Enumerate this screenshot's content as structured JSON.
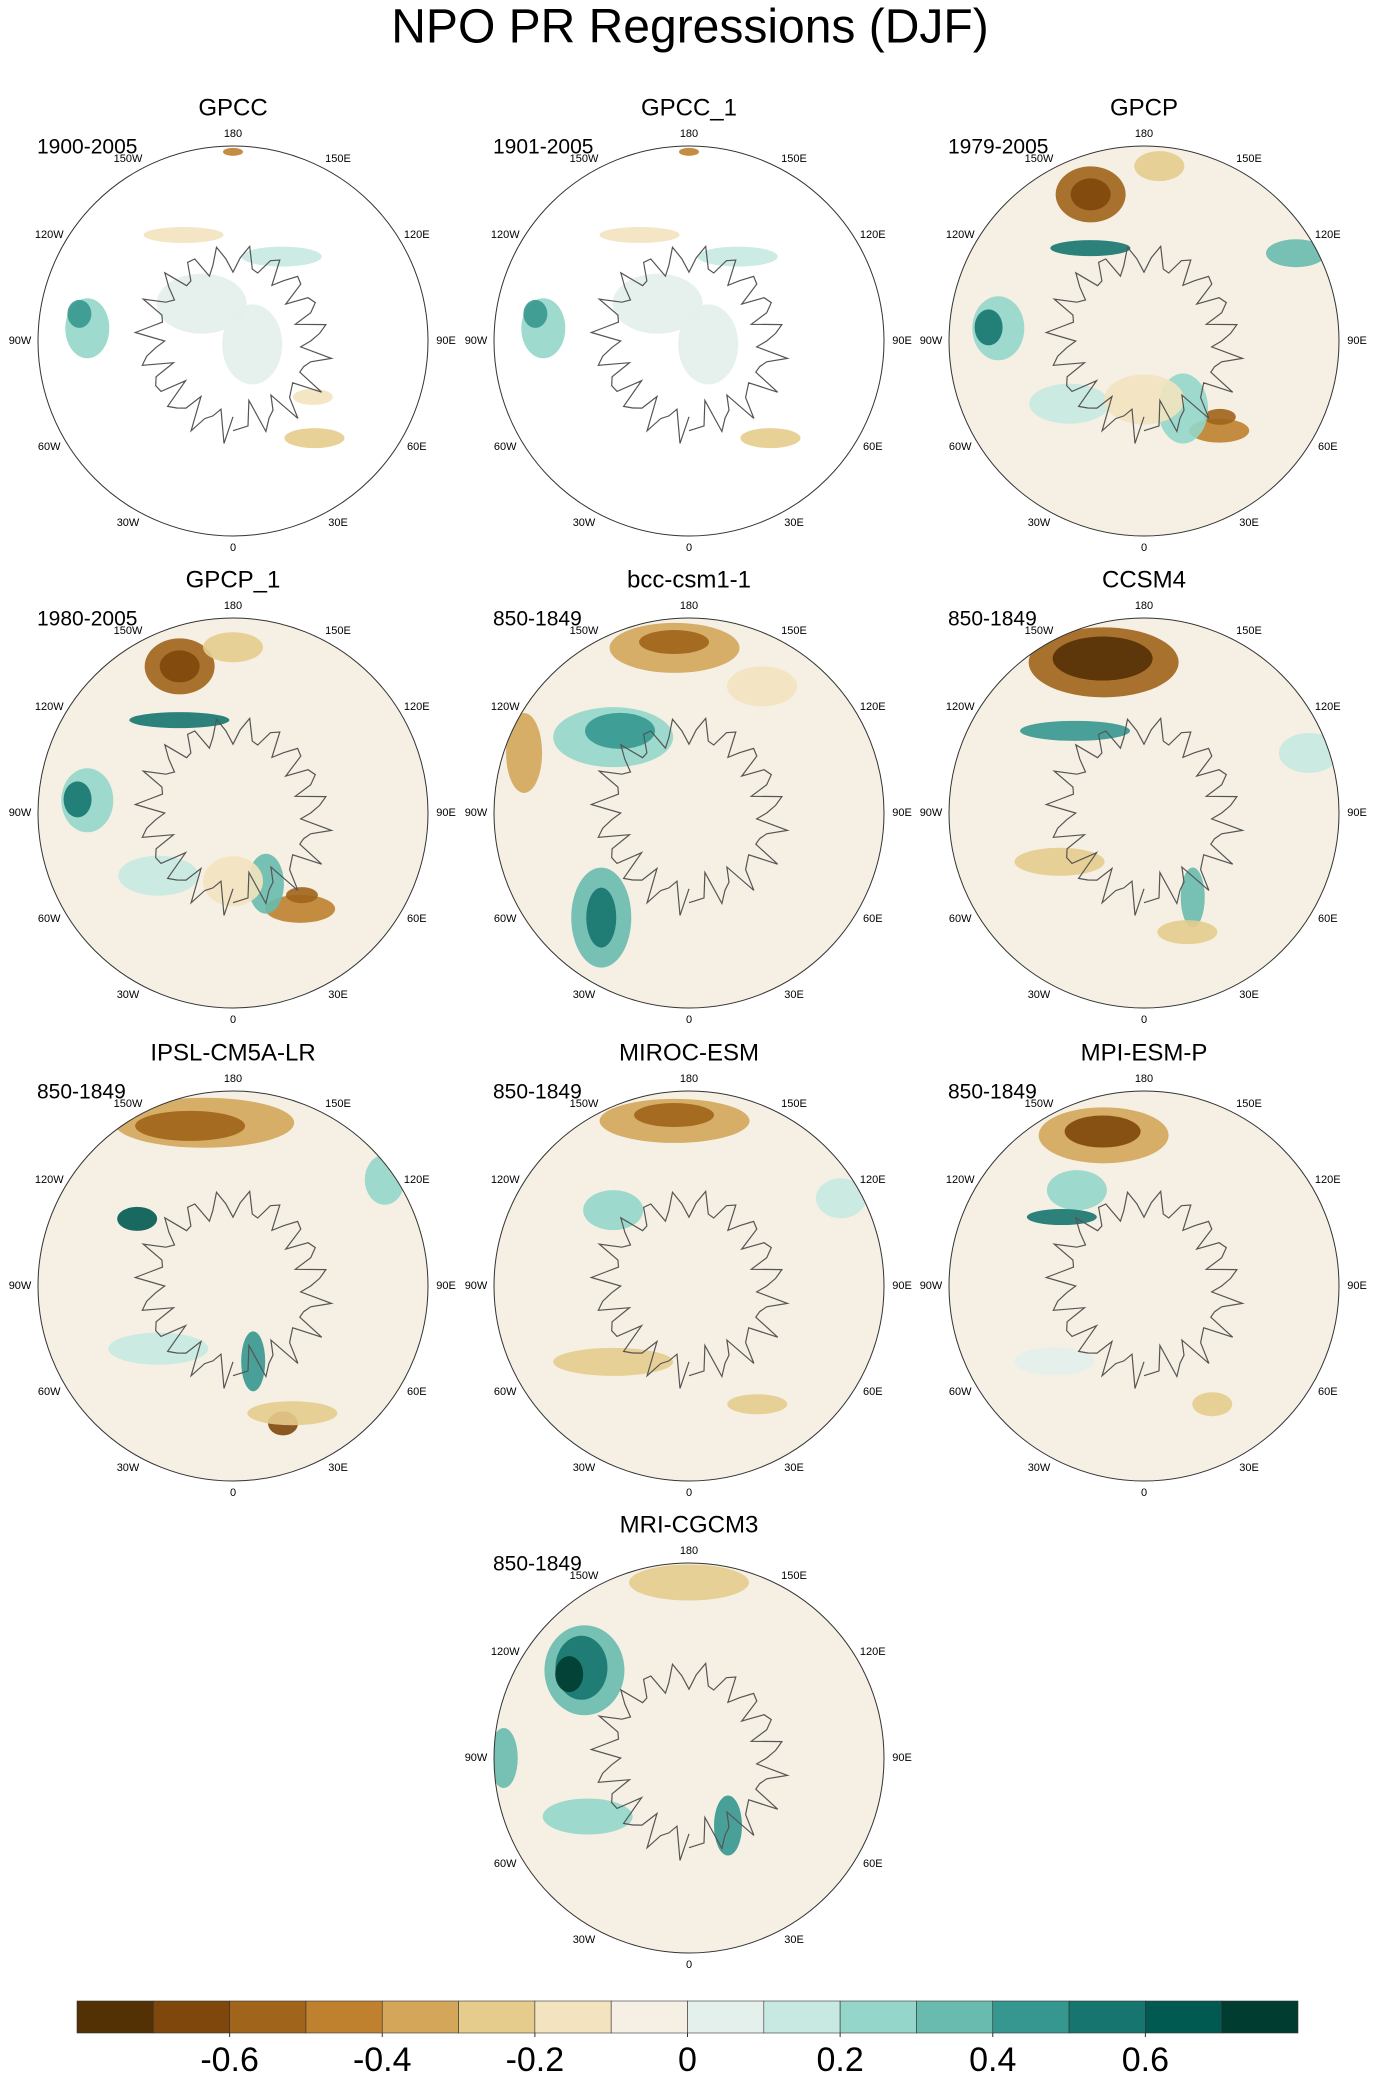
{
  "title": "NPO PR Regressions (DJF)",
  "lon_labels": [
    "0",
    "30E",
    "60E",
    "90E",
    "120E",
    "150E",
    "180",
    "150W",
    "120W",
    "90W",
    "60W",
    "30W"
  ],
  "panels": [
    {
      "title": "GPCC",
      "period": "1900-2005"
    },
    {
      "title": "GPCC_1",
      "period": "1901-2005"
    },
    {
      "title": "GPCP",
      "period": "1979-2005"
    },
    {
      "title": "GPCP_1",
      "period": "1980-2005"
    },
    {
      "title": "bcc-csm1-1",
      "period": "850-1849"
    },
    {
      "title": "CCSM4",
      "period": "850-1849"
    },
    {
      "title": "IPSL-CM5A-LR",
      "period": "850-1849"
    },
    {
      "title": "MIROC-ESM",
      "period": "850-1849"
    },
    {
      "title": "MPI-ESM-P",
      "period": "850-1849"
    },
    {
      "title": "MRI-CGCM3",
      "period": "850-1849"
    }
  ],
  "colorbar": {
    "range": [
      -0.8,
      0.8
    ],
    "ticks": [
      -0.6,
      -0.4,
      -0.2,
      0,
      0.2,
      0.4,
      0.6
    ],
    "colors": [
      "#543005",
      "#7f470b",
      "#a0641a",
      "#bf812d",
      "#d3a65a",
      "#e6cc8c",
      "#f3e3bf",
      "#f5f0e3",
      "#e3f0ec",
      "#c7e9e1",
      "#94d6c9",
      "#68bbae",
      "#35978f",
      "#16766f",
      "#015a52",
      "#003c30"
    ]
  }
}
